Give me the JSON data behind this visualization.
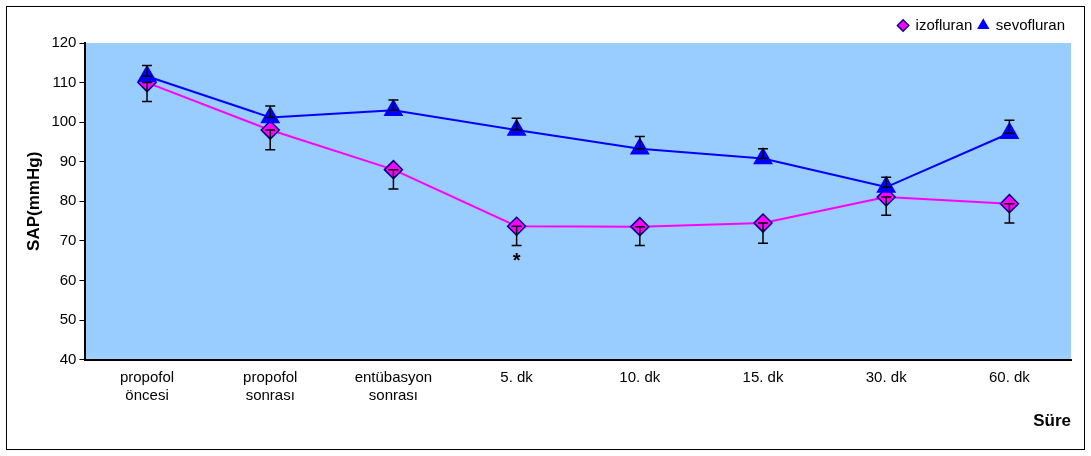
{
  "chart_data": {
    "type": "line",
    "xlabel": "Süre",
    "ylabel": "SAP(mmHg)",
    "categories": [
      "propofol\nöncesi",
      "propofol\nsonrası",
      "entübasyon\nsonrası",
      "5. dk",
      "10. dk",
      "15. dk",
      "30. dk",
      "60. dk"
    ],
    "series": [
      {
        "name": "izofluran",
        "color": "#ff00ff",
        "marker": "diamond",
        "values": [
          110,
          98,
          88,
          73.7,
          73.6,
          74.5,
          81.1,
          79.4
        ],
        "errors": [
          [
            105.2,
            110
          ],
          [
            93,
            98
          ],
          [
            83.1,
            88
          ],
          [
            68.8,
            73.7
          ],
          [
            68.8,
            73.6
          ],
          [
            69.4,
            74.5
          ],
          [
            76.5,
            81.1
          ],
          [
            74.5,
            79.4
          ]
        ]
      },
      {
        "name": "sevofluran",
        "color": "#0000ff",
        "marker": "triangle",
        "values": [
          111.6,
          101.2,
          103,
          98,
          93.3,
          90.8,
          83.6,
          97.2
        ],
        "errors": [
          [
            111.6,
            114.3
          ],
          [
            101.2,
            104.1
          ],
          [
            103,
            105.6
          ],
          [
            98,
            101
          ],
          [
            93.3,
            96.4
          ],
          [
            90.8,
            93.3
          ],
          [
            83.6,
            86.1
          ],
          [
            97.2,
            100.5
          ]
        ]
      }
    ],
    "ylim": [
      40,
      120
    ],
    "yticks": [
      40,
      50,
      60,
      70,
      80,
      90,
      100,
      110,
      120
    ],
    "grid": false,
    "legend": "top right",
    "line_style": "solid",
    "annotations": [
      "*"
    ]
  }
}
